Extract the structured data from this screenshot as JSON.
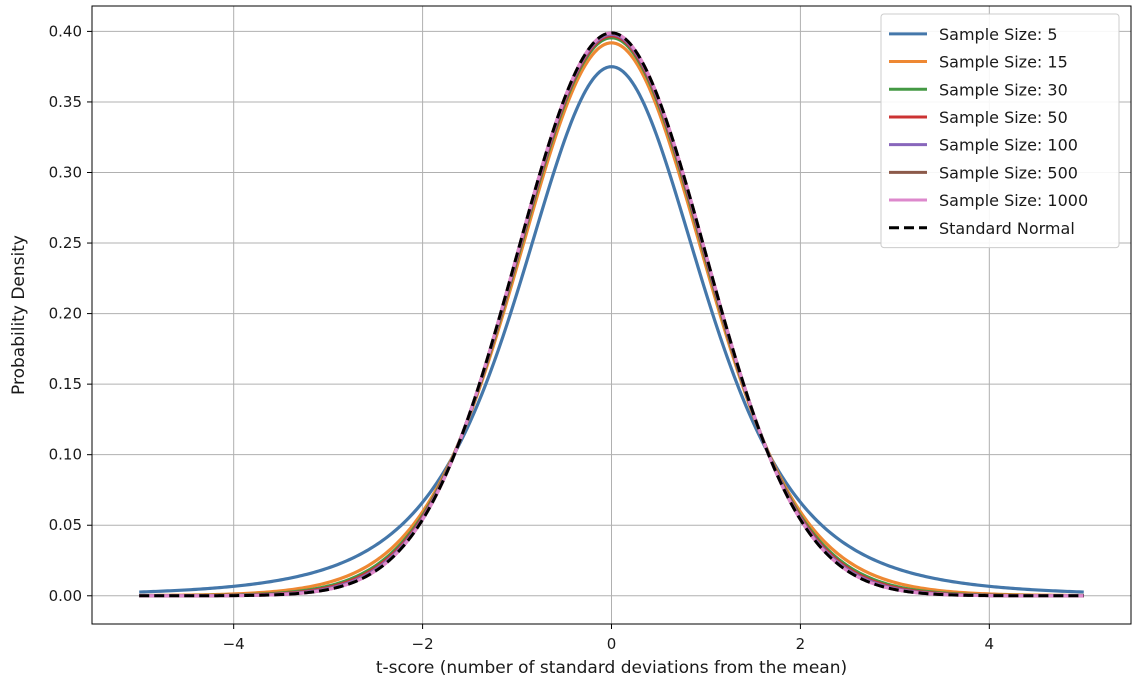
{
  "chart_data": {
    "type": "line",
    "title": "",
    "xlabel": "t-score (number of standard deviations from the mean)",
    "ylabel": "Probability Density",
    "xlim": [
      -5.5,
      5.5
    ],
    "ylim": [
      -0.02,
      0.418
    ],
    "xticks": [
      -4,
      -2,
      0,
      2,
      4
    ],
    "xtick_labels": [
      "−4",
      "−2",
      "0",
      "2",
      "4"
    ],
    "yticks": [
      0.0,
      0.05,
      0.1,
      0.15,
      0.2,
      0.25,
      0.3,
      0.35,
      0.4
    ],
    "ytick_labels": [
      "0.00",
      "0.05",
      "0.10",
      "0.15",
      "0.20",
      "0.25",
      "0.30",
      "0.35",
      "0.40"
    ],
    "grid": true,
    "legend_position": "top-right",
    "x_range": [
      -5,
      5
    ],
    "series": [
      {
        "name": "Sample Size: 5",
        "color": "#4477aa",
        "style": "solid",
        "dist": "t",
        "df": 4,
        "x": [
          -5,
          -4,
          -3,
          -2,
          -1,
          0,
          1,
          2,
          3,
          4,
          5
        ],
        "y": [
          0.003,
          0.0067,
          0.0197,
          0.0663,
          0.2147,
          0.375,
          0.2147,
          0.0663,
          0.0197,
          0.0067,
          0.003
        ]
      },
      {
        "name": "Sample Size: 15",
        "color": "#ee8833",
        "style": "solid",
        "dist": "t",
        "df": 14,
        "x": [
          -5,
          -4,
          -3,
          -2,
          -1,
          0,
          1,
          2,
          3,
          4,
          5
        ],
        "y": [
          0.0002,
          0.001,
          0.0088,
          0.0581,
          0.2354,
          0.3925,
          0.2354,
          0.0581,
          0.0088,
          0.001,
          0.0002
        ]
      },
      {
        "name": "Sample Size: 30",
        "color": "#449944",
        "style": "solid",
        "dist": "t",
        "df": 29,
        "x": [
          -5,
          -4,
          -3,
          -2,
          -1,
          0,
          1,
          2,
          3,
          4,
          5
        ],
        "y": [
          0.0,
          0.0004,
          0.0064,
          0.0563,
          0.2399,
          0.396,
          0.2399,
          0.0563,
          0.0064,
          0.0004,
          0.0
        ]
      },
      {
        "name": "Sample Size: 50",
        "color": "#cc3333",
        "style": "solid",
        "dist": "t",
        "df": 49,
        "x": [
          -5,
          -4,
          -3,
          -2,
          -1,
          0,
          1,
          2,
          3,
          4,
          5
        ],
        "y": [
          0.0,
          0.0003,
          0.0056,
          0.0554,
          0.24,
          0.397,
          0.24,
          0.0554,
          0.0056,
          0.0003,
          0.0
        ]
      },
      {
        "name": "Sample Size: 100",
        "color": "#8866bb",
        "style": "solid",
        "dist": "t",
        "df": 99,
        "x": [
          -5,
          -4,
          -3,
          -2,
          -1,
          0,
          1,
          2,
          3,
          4,
          5
        ],
        "y": [
          0.0,
          0.0002,
          0.005,
          0.0549,
          0.241,
          0.398,
          0.241,
          0.0549,
          0.005,
          0.0002,
          0.0
        ]
      },
      {
        "name": "Sample Size: 500",
        "color": "#8c5a4a",
        "style": "solid",
        "dist": "t",
        "df": 499,
        "x": [
          -5,
          -4,
          -3,
          -2,
          -1,
          0,
          1,
          2,
          3,
          4,
          5
        ],
        "y": [
          0.0,
          0.0001,
          0.0045,
          0.0542,
          0.2418,
          0.3987,
          0.2418,
          0.0542,
          0.0045,
          0.0001,
          0.0
        ]
      },
      {
        "name": "Sample Size: 1000",
        "color": "#dd88cc",
        "style": "solid",
        "dist": "t",
        "df": 999,
        "x": [
          -5,
          -4,
          -3,
          -2,
          -1,
          0,
          1,
          2,
          3,
          4,
          5
        ],
        "y": [
          0.0,
          0.0001,
          0.0045,
          0.0541,
          0.2419,
          0.3988,
          0.2419,
          0.0541,
          0.0045,
          0.0001,
          0.0
        ]
      },
      {
        "name": "Standard Normal",
        "color": "#000000",
        "style": "dashed",
        "dist": "normal",
        "df": null,
        "x": [
          -5,
          -4,
          -3,
          -2,
          -1,
          0,
          1,
          2,
          3,
          4,
          5
        ],
        "y": [
          0.0,
          0.0001,
          0.0044,
          0.054,
          0.242,
          0.3989,
          0.242,
          0.054,
          0.0044,
          0.0001,
          0.0
        ]
      }
    ]
  }
}
